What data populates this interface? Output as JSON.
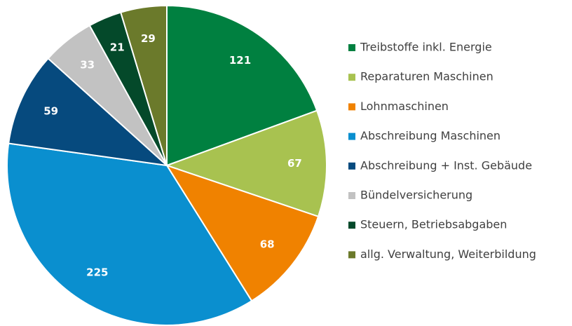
{
  "chart_data": {
    "type": "pie",
    "categories": [
      "Treibstoffe inkl. Energie",
      "Reparaturen Maschinen",
      "Lohnmaschinen",
      "Abschreibung Maschinen",
      "Abschreibung + Inst. Gebäude",
      "Bündelversicherung",
      "Steuern, Betriebsabgaben",
      "allg. Verwaltung, Weiterbildung"
    ],
    "values": [
      121,
      67,
      68,
      225,
      59,
      33,
      21,
      29
    ],
    "colors": [
      "#008040",
      "#a8c250",
      "#f08200",
      "#0a8fcf",
      "#064a7e",
      "#c2c2c2",
      "#04492a",
      "#6b7a2b"
    ],
    "legend": "right"
  }
}
